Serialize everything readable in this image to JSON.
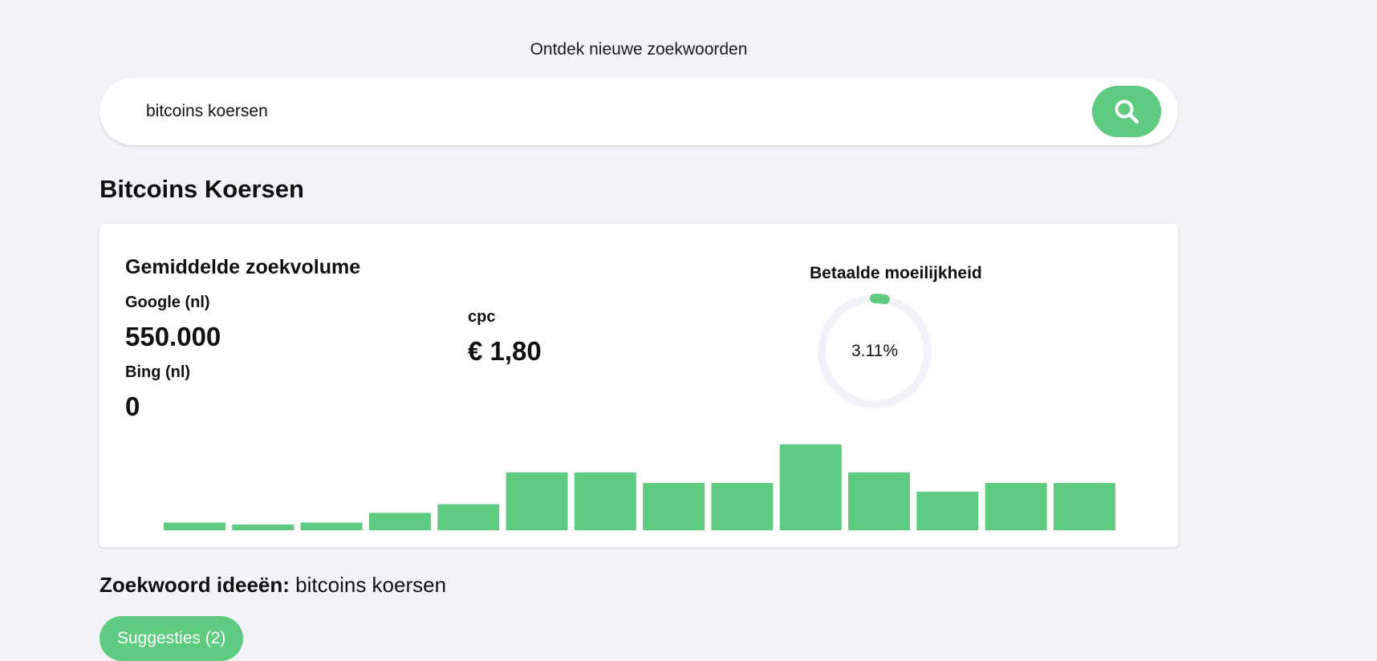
{
  "header": {
    "title": "Ontdek nieuwe zoekwoorden"
  },
  "search": {
    "value": "bitcoins koersen",
    "button_icon": "search-icon"
  },
  "keyword": {
    "heading": "Bitcoins Koersen"
  },
  "metrics": {
    "volume_title": "Gemiddelde zoekvolume",
    "google_label": "Google (nl)",
    "google_value": "550.000",
    "bing_label": "Bing (nl)",
    "bing_value": "0",
    "cpc_label": "cpc",
    "cpc_value": "€ 1,80",
    "difficulty_label": "Betaalde moeilijkheid",
    "difficulty_value": "3.11%",
    "difficulty_percent": 3.11
  },
  "chart_data": {
    "type": "bar",
    "values": [
      8,
      6,
      8,
      18,
      27,
      60,
      60,
      49,
      49,
      89,
      60,
      40,
      49,
      49
    ],
    "ylim": [
      0,
      89
    ],
    "grid": false,
    "color": "#5ecb80"
  },
  "ideas": {
    "label": "Zoekwoord ideeën:",
    "keyword": "bitcoins koersen",
    "suggestions_button": "Suggesties (2)"
  },
  "colors": {
    "accent": "#5ecb80",
    "background": "#f1f3f8",
    "track": "#f0f2f7"
  }
}
